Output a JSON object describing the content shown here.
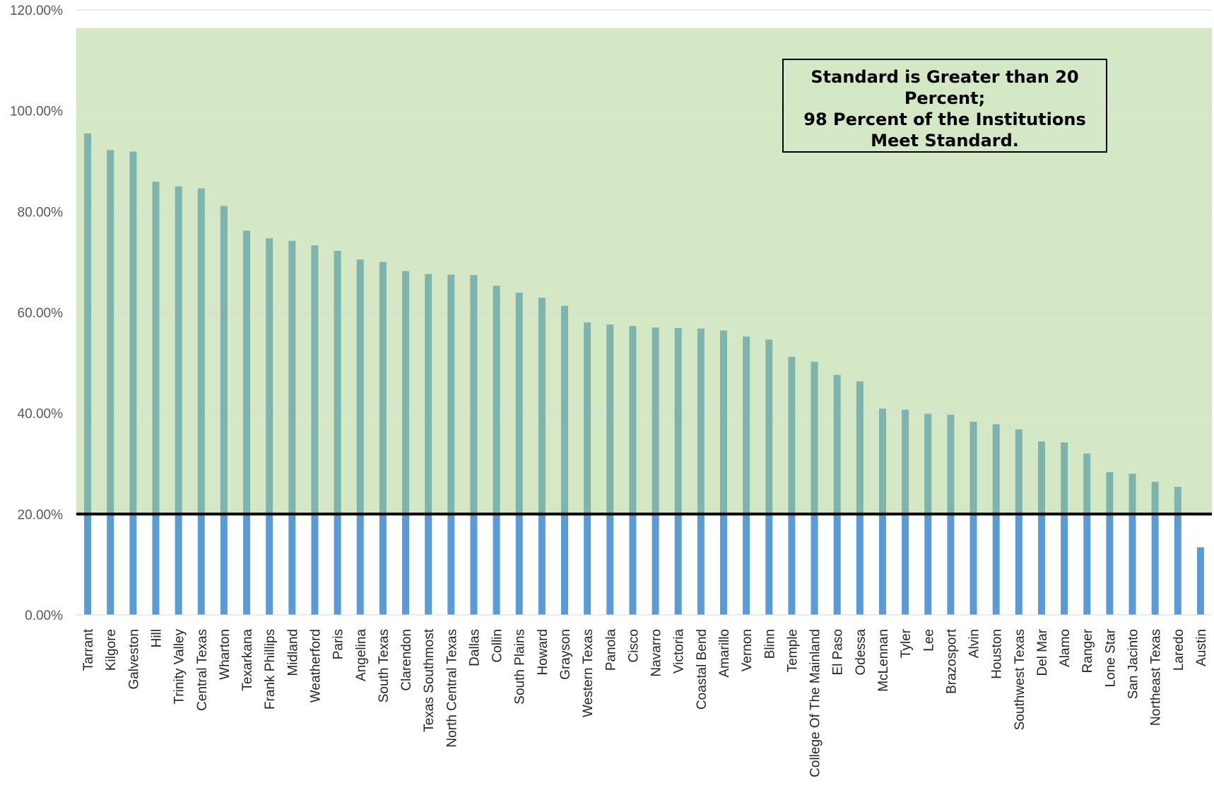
{
  "chart_data": {
    "type": "bar",
    "categories": [
      "Tarrant",
      "Kilgore",
      "Galveston",
      "Hill",
      "Trinity Valley",
      "Central Texas",
      "Wharton",
      "Texarkana",
      "Frank Phillips",
      "Midland",
      "Weatherford",
      "Paris",
      "Angelina",
      "South Texas",
      "Clarendon",
      "Texas Southmost",
      "North Central Texas",
      "Dallas",
      "Collin",
      "South Plains",
      "Howard",
      "Grayson",
      "Western Texas",
      "Panola",
      "Cisco",
      "Navarro",
      "Victoria",
      "Coastal Bend",
      "Amarillo",
      "Vernon",
      "Blinn",
      "Temple",
      "College Of The Mainland",
      "El Paso",
      "Odessa",
      "McLennan",
      "Tyler",
      "Lee",
      "Brazosport",
      "Alvin",
      "Houston",
      "Southwest Texas",
      "Del Mar",
      "Alamo",
      "Ranger",
      "Lone Star",
      "San Jacinto",
      "Northeast Texas",
      "Laredo",
      "Austin"
    ],
    "values": [
      95.5,
      92.2,
      91.9,
      85.9,
      85.0,
      84.6,
      81.1,
      76.2,
      74.7,
      74.2,
      73.3,
      72.2,
      70.5,
      70.0,
      68.2,
      67.6,
      67.5,
      67.4,
      65.3,
      63.9,
      62.9,
      61.3,
      58.0,
      57.6,
      57.3,
      57.0,
      56.9,
      56.8,
      56.4,
      55.2,
      54.6,
      51.2,
      50.2,
      47.6,
      46.3,
      40.9,
      40.7,
      39.9,
      39.7,
      38.3,
      37.8,
      36.8,
      34.4,
      34.2,
      32.0,
      28.3,
      28.0,
      26.4,
      25.4,
      13.4
    ],
    "ylim": [
      0,
      120
    ],
    "yticks": [
      "0.00%",
      "20.00%",
      "40.00%",
      "60.00%",
      "80.00%",
      "100.00%",
      "120.00%"
    ],
    "standard": 20,
    "annotation": [
      "Standard is Greater than 20",
      "Percent;",
      "98 Percent of the Institutions",
      "Meet Standard."
    ],
    "colors": {
      "bar_below": "#5b9bd5",
      "bar_above": "#7fb3ae",
      "region_fill": "#d5e8c6",
      "standard_line": "#000000",
      "gridline": "#d9d9d9"
    },
    "grid": true,
    "legend": "none"
  }
}
